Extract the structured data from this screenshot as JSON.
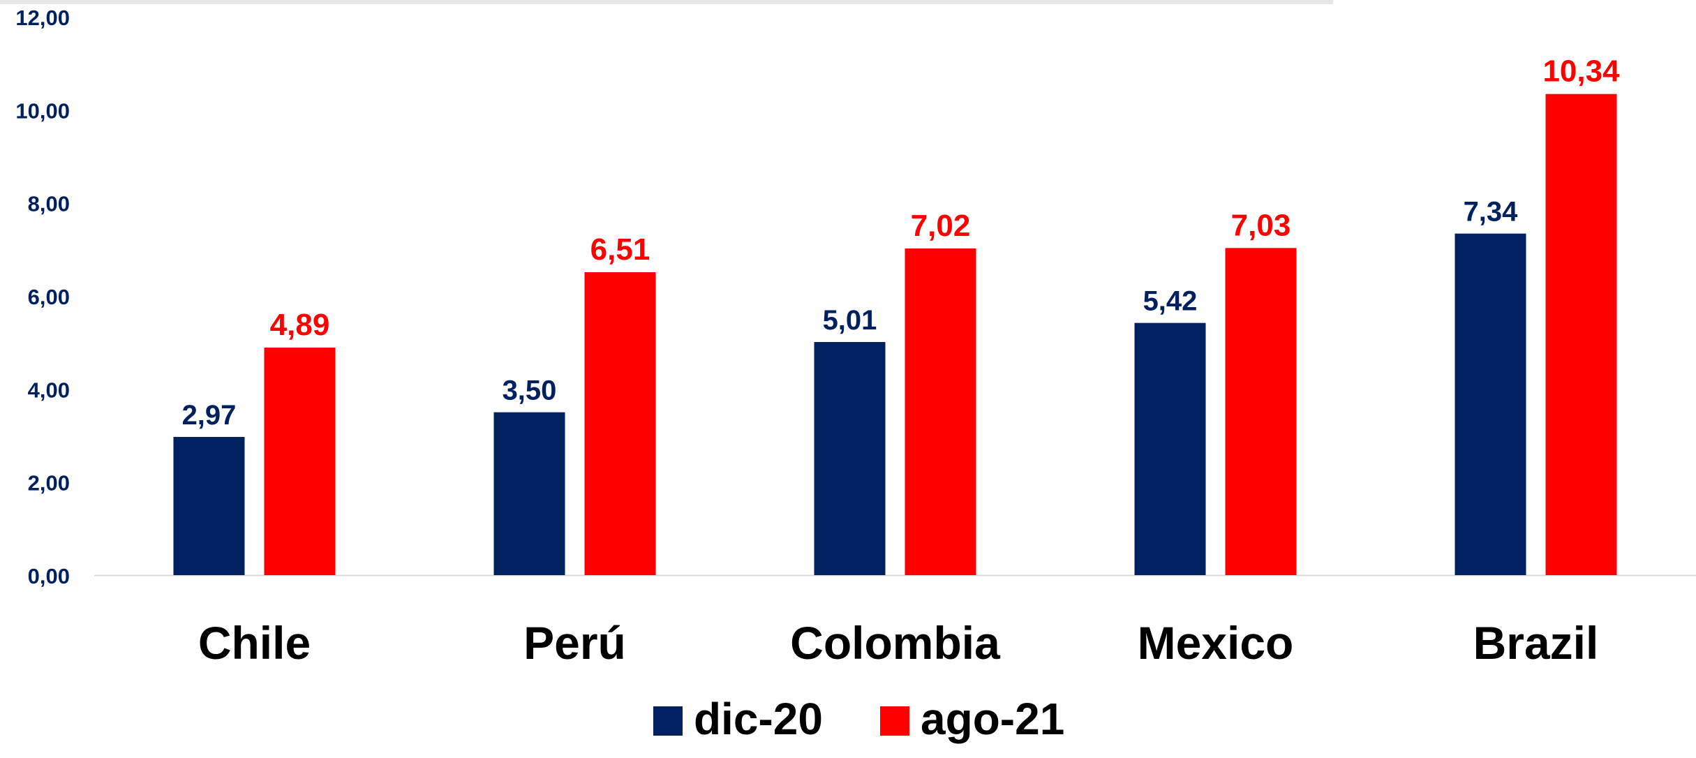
{
  "chart_data": {
    "type": "bar",
    "categories": [
      "Chile",
      "Perú",
      "Colombia",
      "Mexico",
      "Brazil"
    ],
    "series": [
      {
        "name": "dic-20",
        "color": "#002060",
        "values": [
          2.97,
          3.5,
          5.01,
          5.42,
          7.34
        ],
        "labels": [
          "2,97",
          "3,50",
          "5,01",
          "5,42",
          "7,34"
        ]
      },
      {
        "name": "ago-21",
        "color": "#ff0000",
        "values": [
          4.89,
          6.51,
          7.02,
          7.03,
          10.34
        ],
        "labels": [
          "4,89",
          "6,51",
          "7,02",
          "7,03",
          "10,34"
        ]
      }
    ],
    "ylim": [
      0,
      12
    ],
    "yticks": [
      0,
      2,
      4,
      6,
      8,
      10,
      12
    ],
    "ytick_labels": [
      "0,00",
      "2,00",
      "4,00",
      "6,00",
      "8,00",
      "10,00",
      "12,00"
    ],
    "title": "",
    "xlabel": "",
    "ylabel": "",
    "grid": false,
    "legend_position": "bottom-center",
    "axis_label_color": "#002060"
  }
}
